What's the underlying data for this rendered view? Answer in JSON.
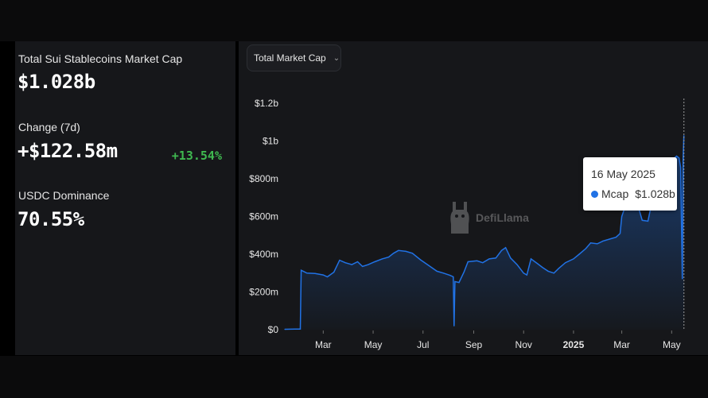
{
  "stats": {
    "mcap_label": "Total Sui Stablecoins Market Cap",
    "mcap_value": "$1.028b",
    "change_label": "Change (7d)",
    "change_value": "+$122.58m",
    "change_percent": "+13.54%",
    "dominance_label": "USDC Dominance",
    "dominance_value": "70.55%"
  },
  "chart_controls": {
    "metric_selected": "Total Market Cap",
    "metric_icon": "chevron-down-icon"
  },
  "tooltip": {
    "date": "16 May 2025",
    "series_name": "Mcap",
    "value": "$1.028b"
  },
  "watermark": {
    "text": "DefiLlama"
  },
  "colors": {
    "background": "#000000",
    "panel": "#16171a",
    "line": "#2172e5",
    "positive": "#3fb950"
  },
  "chart_data": {
    "type": "area",
    "title": "",
    "xlabel": "",
    "ylabel": "",
    "ylim": [
      0,
      1200000000
    ],
    "y_ticks": [
      {
        "value": 0,
        "label": "$0"
      },
      {
        "value": 200000000,
        "label": "$200m"
      },
      {
        "value": 400000000,
        "label": "$400m"
      },
      {
        "value": 600000000,
        "label": "$600m"
      },
      {
        "value": 800000000,
        "label": "$800m"
      },
      {
        "value": 1000000000,
        "label": "$1b"
      },
      {
        "value": 1200000000,
        "label": "$1.2b"
      }
    ],
    "xlim": [
      "2024-01-14",
      "2025-05-25"
    ],
    "x_ticks": [
      {
        "date": "2024-03-01",
        "label": "Mar",
        "bold": false
      },
      {
        "date": "2024-05-01",
        "label": "May",
        "bold": false
      },
      {
        "date": "2024-07-01",
        "label": "Jul",
        "bold": false
      },
      {
        "date": "2024-09-01",
        "label": "Sep",
        "bold": false
      },
      {
        "date": "2024-11-01",
        "label": "Nov",
        "bold": false
      },
      {
        "date": "2025-01-01",
        "label": "2025",
        "bold": true
      },
      {
        "date": "2025-03-01",
        "label": "Mar",
        "bold": false
      },
      {
        "date": "2025-05-01",
        "label": "May",
        "bold": false
      }
    ],
    "grid": false,
    "legend": "none",
    "series": [
      {
        "name": "Mcap",
        "points": [
          [
            "2024-01-14",
            2000000
          ],
          [
            "2024-01-26",
            3000000
          ],
          [
            "2024-02-02",
            3000000
          ],
          [
            "2024-02-03",
            315000000
          ],
          [
            "2024-02-10",
            300000000
          ],
          [
            "2024-02-20",
            298000000
          ],
          [
            "2024-03-01",
            290000000
          ],
          [
            "2024-03-06",
            280000000
          ],
          [
            "2024-03-14",
            305000000
          ],
          [
            "2024-03-21",
            368000000
          ],
          [
            "2024-03-28",
            355000000
          ],
          [
            "2024-04-05",
            345000000
          ],
          [
            "2024-04-12",
            360000000
          ],
          [
            "2024-04-18",
            335000000
          ],
          [
            "2024-04-25",
            345000000
          ],
          [
            "2024-05-03",
            360000000
          ],
          [
            "2024-05-12",
            375000000
          ],
          [
            "2024-05-20",
            385000000
          ],
          [
            "2024-05-26",
            405000000
          ],
          [
            "2024-06-01",
            420000000
          ],
          [
            "2024-06-10",
            415000000
          ],
          [
            "2024-06-18",
            405000000
          ],
          [
            "2024-06-28",
            370000000
          ],
          [
            "2024-07-08",
            340000000
          ],
          [
            "2024-07-18",
            310000000
          ],
          [
            "2024-07-26",
            300000000
          ],
          [
            "2024-08-03",
            288000000
          ],
          [
            "2024-08-07",
            280000000
          ],
          [
            "2024-08-08",
            20000000
          ],
          [
            "2024-08-09",
            255000000
          ],
          [
            "2024-08-14",
            250000000
          ],
          [
            "2024-08-20",
            305000000
          ],
          [
            "2024-08-25",
            360000000
          ],
          [
            "2024-09-05",
            365000000
          ],
          [
            "2024-09-12",
            355000000
          ],
          [
            "2024-09-20",
            375000000
          ],
          [
            "2024-09-28",
            380000000
          ],
          [
            "2024-10-05",
            420000000
          ],
          [
            "2024-10-10",
            435000000
          ],
          [
            "2024-10-16",
            380000000
          ],
          [
            "2024-10-24",
            345000000
          ],
          [
            "2024-11-01",
            300000000
          ],
          [
            "2024-11-05",
            290000000
          ],
          [
            "2024-11-10",
            375000000
          ],
          [
            "2024-11-18",
            350000000
          ],
          [
            "2024-11-24",
            330000000
          ],
          [
            "2024-12-01",
            310000000
          ],
          [
            "2024-12-08",
            300000000
          ],
          [
            "2024-12-14",
            325000000
          ],
          [
            "2024-12-22",
            355000000
          ],
          [
            "2025-01-01",
            375000000
          ],
          [
            "2025-01-08",
            400000000
          ],
          [
            "2025-01-16",
            430000000
          ],
          [
            "2025-01-22",
            460000000
          ],
          [
            "2025-01-30",
            455000000
          ],
          [
            "2025-02-06",
            470000000
          ],
          [
            "2025-02-14",
            480000000
          ],
          [
            "2025-02-22",
            490000000
          ],
          [
            "2025-02-27",
            510000000
          ],
          [
            "2025-03-01",
            600000000
          ],
          [
            "2025-03-05",
            650000000
          ],
          [
            "2025-03-12",
            660000000
          ],
          [
            "2025-03-20",
            670000000
          ],
          [
            "2025-03-26",
            580000000
          ],
          [
            "2025-04-02",
            575000000
          ],
          [
            "2025-04-08",
            700000000
          ],
          [
            "2025-04-15",
            760000000
          ],
          [
            "2025-04-22",
            810000000
          ],
          [
            "2025-04-28",
            870000000
          ],
          [
            "2025-05-03",
            905000000
          ],
          [
            "2025-05-07",
            920000000
          ],
          [
            "2025-05-10",
            910000000
          ],
          [
            "2025-05-12",
            860000000
          ],
          [
            "2025-05-14",
            270000000
          ],
          [
            "2025-05-15",
            900000000
          ],
          [
            "2025-05-16",
            1028000000
          ]
        ]
      }
    ],
    "cursor_date": "2025-05-16"
  }
}
